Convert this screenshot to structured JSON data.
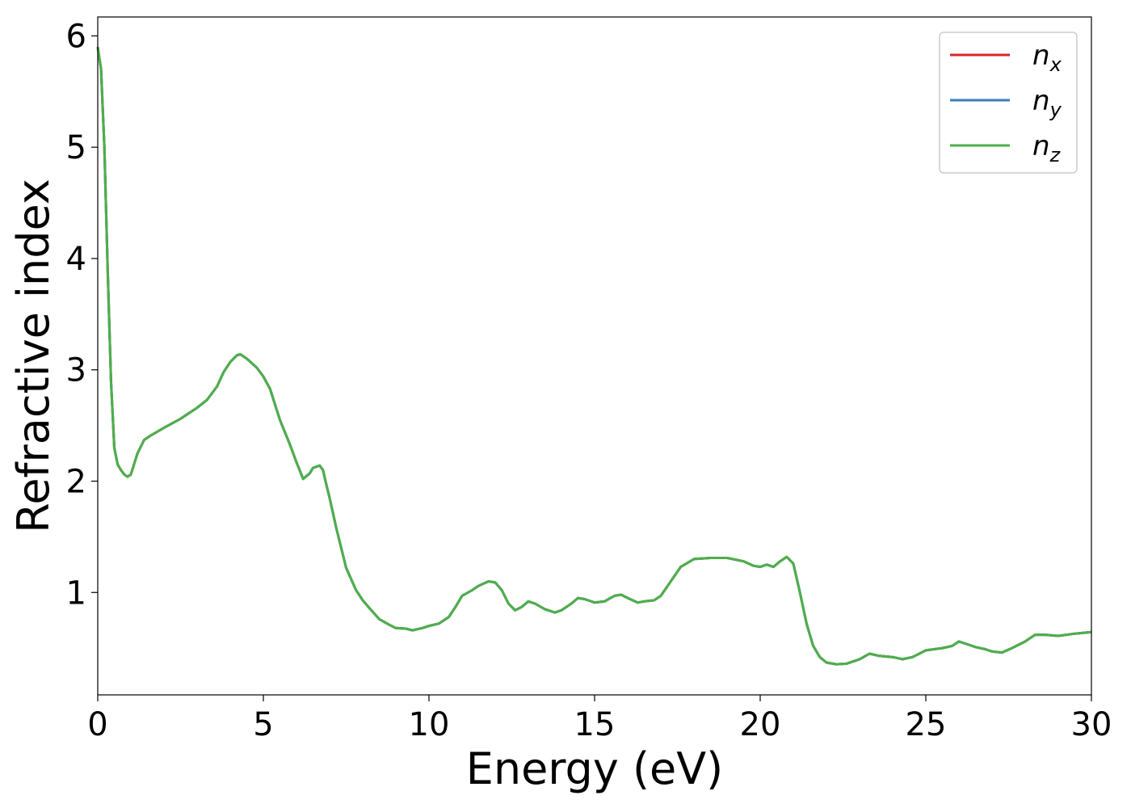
{
  "chart_data": {
    "type": "line",
    "xlabel": "Energy (eV)",
    "ylabel": "Refractive index",
    "xlim": [
      0,
      30
    ],
    "ylim": [
      0.08,
      6.17
    ],
    "xticks": [
      "0",
      "5",
      "10",
      "15",
      "20",
      "25",
      "30"
    ],
    "xtick_values": [
      0,
      5,
      10,
      15,
      20,
      25,
      30
    ],
    "yticks": [
      "1",
      "2",
      "3",
      "4",
      "5",
      "6"
    ],
    "ytick_values": [
      1,
      2,
      3,
      4,
      5,
      6
    ],
    "grid": false,
    "legend_position": "top-right",
    "series": [
      {
        "name": "n",
        "subscript": "x",
        "color": "#d62728",
        "x": [
          0,
          0.1,
          0.2,
          0.3,
          0.4,
          0.5,
          0.6,
          0.7,
          0.8,
          0.9,
          1.0,
          1.2,
          1.4,
          1.6,
          2.0,
          2.5,
          3.0,
          3.3,
          3.6,
          3.8,
          4.0,
          4.2,
          4.3,
          4.5,
          4.8,
          5.0,
          5.2,
          5.5,
          5.8,
          6.0,
          6.2,
          6.4,
          6.5,
          6.7,
          6.8,
          6.9,
          7.0,
          7.2,
          7.5,
          7.8,
          8.0,
          8.2,
          8.5,
          8.8,
          9.0,
          9.3,
          9.5,
          9.8,
          10.0,
          10.3,
          10.6,
          10.8,
          11.0,
          11.3,
          11.5,
          11.8,
          12.0,
          12.2,
          12.4,
          12.6,
          12.8,
          13.0,
          13.2,
          13.5,
          13.8,
          14.0,
          14.3,
          14.5,
          14.7,
          15.0,
          15.3,
          15.6,
          15.8,
          16.0,
          16.3,
          16.5,
          16.8,
          17.0,
          17.3,
          17.6,
          18.0,
          18.5,
          19.0,
          19.5,
          19.8,
          20.0,
          20.2,
          20.4,
          20.6,
          20.8,
          21.0,
          21.2,
          21.4,
          21.6,
          21.8,
          22.0,
          22.3,
          22.6,
          23.0,
          23.3,
          23.6,
          24.0,
          24.3,
          24.6,
          25.0,
          25.5,
          25.8,
          26.0,
          26.3,
          26.5,
          26.8,
          27.0,
          27.3,
          27.6,
          28.0,
          28.3,
          28.6,
          29.0,
          29.5,
          30.0
        ],
        "values": [
          5.9,
          5.7,
          5.0,
          3.9,
          2.9,
          2.3,
          2.15,
          2.1,
          2.06,
          2.04,
          2.06,
          2.25,
          2.37,
          2.41,
          2.48,
          2.56,
          2.66,
          2.73,
          2.85,
          2.98,
          3.07,
          3.13,
          3.14,
          3.1,
          3.02,
          2.94,
          2.83,
          2.55,
          2.33,
          2.17,
          2.02,
          2.07,
          2.12,
          2.14,
          2.1,
          1.97,
          1.85,
          1.58,
          1.22,
          1.02,
          0.93,
          0.86,
          0.76,
          0.71,
          0.68,
          0.675,
          0.66,
          0.68,
          0.7,
          0.72,
          0.78,
          0.87,
          0.97,
          1.02,
          1.06,
          1.1,
          1.09,
          1.02,
          0.9,
          0.84,
          0.87,
          0.92,
          0.9,
          0.85,
          0.82,
          0.84,
          0.9,
          0.95,
          0.94,
          0.91,
          0.92,
          0.97,
          0.98,
          0.95,
          0.91,
          0.92,
          0.93,
          0.97,
          1.1,
          1.23,
          1.3,
          1.31,
          1.31,
          1.28,
          1.24,
          1.23,
          1.25,
          1.23,
          1.28,
          1.32,
          1.26,
          1.0,
          0.72,
          0.52,
          0.42,
          0.37,
          0.355,
          0.36,
          0.4,
          0.45,
          0.43,
          0.42,
          0.4,
          0.42,
          0.48,
          0.5,
          0.52,
          0.56,
          0.53,
          0.51,
          0.49,
          0.47,
          0.46,
          0.5,
          0.56,
          0.62,
          0.62,
          0.61,
          0.63,
          0.645
        ]
      },
      {
        "name": "n",
        "subscript": "y",
        "color": "#377eb8",
        "x": [
          0,
          0.1,
          0.2,
          0.3,
          0.4,
          0.5,
          0.6,
          0.7,
          0.8,
          0.9,
          1.0,
          1.2,
          1.4,
          1.6,
          2.0,
          2.5,
          3.0,
          3.3,
          3.6,
          3.8,
          4.0,
          4.2,
          4.3,
          4.5,
          4.8,
          5.0,
          5.2,
          5.5,
          5.8,
          6.0,
          6.2,
          6.4,
          6.5,
          6.7,
          6.8,
          6.9,
          7.0,
          7.2,
          7.5,
          7.8,
          8.0,
          8.2,
          8.5,
          8.8,
          9.0,
          9.3,
          9.5,
          9.8,
          10.0,
          10.3,
          10.6,
          10.8,
          11.0,
          11.3,
          11.5,
          11.8,
          12.0,
          12.2,
          12.4,
          12.6,
          12.8,
          13.0,
          13.2,
          13.5,
          13.8,
          14.0,
          14.3,
          14.5,
          14.7,
          15.0,
          15.3,
          15.6,
          15.8,
          16.0,
          16.3,
          16.5,
          16.8,
          17.0,
          17.3,
          17.6,
          18.0,
          18.5,
          19.0,
          19.5,
          19.8,
          20.0,
          20.2,
          20.4,
          20.6,
          20.8,
          21.0,
          21.2,
          21.4,
          21.6,
          21.8,
          22.0,
          22.3,
          22.6,
          23.0,
          23.3,
          23.6,
          24.0,
          24.3,
          24.6,
          25.0,
          25.5,
          25.8,
          26.0,
          26.3,
          26.5,
          26.8,
          27.0,
          27.3,
          27.6,
          28.0,
          28.3,
          28.6,
          29.0,
          29.5,
          30.0
        ],
        "values": [
          5.9,
          5.7,
          5.0,
          3.9,
          2.9,
          2.3,
          2.15,
          2.1,
          2.06,
          2.04,
          2.06,
          2.25,
          2.37,
          2.41,
          2.48,
          2.56,
          2.66,
          2.73,
          2.85,
          2.98,
          3.07,
          3.13,
          3.14,
          3.1,
          3.02,
          2.94,
          2.83,
          2.55,
          2.33,
          2.17,
          2.02,
          2.07,
          2.12,
          2.14,
          2.1,
          1.97,
          1.85,
          1.58,
          1.22,
          1.02,
          0.93,
          0.86,
          0.76,
          0.71,
          0.68,
          0.675,
          0.66,
          0.68,
          0.7,
          0.72,
          0.78,
          0.87,
          0.97,
          1.02,
          1.06,
          1.1,
          1.09,
          1.02,
          0.9,
          0.84,
          0.87,
          0.92,
          0.9,
          0.85,
          0.82,
          0.84,
          0.9,
          0.95,
          0.94,
          0.91,
          0.92,
          0.97,
          0.98,
          0.95,
          0.91,
          0.92,
          0.93,
          0.97,
          1.1,
          1.23,
          1.3,
          1.31,
          1.31,
          1.28,
          1.24,
          1.23,
          1.25,
          1.23,
          1.28,
          1.32,
          1.26,
          1.0,
          0.72,
          0.52,
          0.42,
          0.37,
          0.355,
          0.36,
          0.4,
          0.45,
          0.43,
          0.42,
          0.4,
          0.42,
          0.48,
          0.5,
          0.52,
          0.56,
          0.53,
          0.51,
          0.49,
          0.47,
          0.46,
          0.5,
          0.56,
          0.62,
          0.62,
          0.61,
          0.63,
          0.645
        ]
      },
      {
        "name": "n",
        "subscript": "z",
        "color": "#4daf4a",
        "x": [
          0,
          0.1,
          0.2,
          0.3,
          0.4,
          0.5,
          0.6,
          0.7,
          0.8,
          0.9,
          1.0,
          1.2,
          1.4,
          1.6,
          2.0,
          2.5,
          3.0,
          3.3,
          3.6,
          3.8,
          4.0,
          4.2,
          4.3,
          4.5,
          4.8,
          5.0,
          5.2,
          5.5,
          5.8,
          6.0,
          6.2,
          6.4,
          6.5,
          6.7,
          6.8,
          6.9,
          7.0,
          7.2,
          7.5,
          7.8,
          8.0,
          8.2,
          8.5,
          8.8,
          9.0,
          9.3,
          9.5,
          9.8,
          10.0,
          10.3,
          10.6,
          10.8,
          11.0,
          11.3,
          11.5,
          11.8,
          12.0,
          12.2,
          12.4,
          12.6,
          12.8,
          13.0,
          13.2,
          13.5,
          13.8,
          14.0,
          14.3,
          14.5,
          14.7,
          15.0,
          15.3,
          15.6,
          15.8,
          16.0,
          16.3,
          16.5,
          16.8,
          17.0,
          17.3,
          17.6,
          18.0,
          18.5,
          19.0,
          19.5,
          19.8,
          20.0,
          20.2,
          20.4,
          20.6,
          20.8,
          21.0,
          21.2,
          21.4,
          21.6,
          21.8,
          22.0,
          22.3,
          22.6,
          23.0,
          23.3,
          23.6,
          24.0,
          24.3,
          24.6,
          25.0,
          25.5,
          25.8,
          26.0,
          26.3,
          26.5,
          26.8,
          27.0,
          27.3,
          27.6,
          28.0,
          28.3,
          28.6,
          29.0,
          29.5,
          30.0
        ],
        "values": [
          5.9,
          5.7,
          5.0,
          3.9,
          2.9,
          2.3,
          2.15,
          2.1,
          2.06,
          2.04,
          2.06,
          2.25,
          2.37,
          2.41,
          2.48,
          2.56,
          2.66,
          2.73,
          2.85,
          2.98,
          3.07,
          3.13,
          3.14,
          3.1,
          3.02,
          2.94,
          2.83,
          2.55,
          2.33,
          2.17,
          2.02,
          2.07,
          2.12,
          2.14,
          2.1,
          1.97,
          1.85,
          1.58,
          1.22,
          1.02,
          0.93,
          0.86,
          0.76,
          0.71,
          0.68,
          0.675,
          0.66,
          0.68,
          0.7,
          0.72,
          0.78,
          0.87,
          0.97,
          1.02,
          1.06,
          1.1,
          1.09,
          1.02,
          0.9,
          0.84,
          0.87,
          0.92,
          0.9,
          0.85,
          0.82,
          0.84,
          0.9,
          0.95,
          0.94,
          0.91,
          0.92,
          0.97,
          0.98,
          0.95,
          0.91,
          0.92,
          0.93,
          0.97,
          1.1,
          1.23,
          1.3,
          1.31,
          1.31,
          1.28,
          1.24,
          1.23,
          1.25,
          1.23,
          1.28,
          1.32,
          1.26,
          1.0,
          0.72,
          0.52,
          0.42,
          0.37,
          0.355,
          0.36,
          0.4,
          0.45,
          0.43,
          0.42,
          0.4,
          0.42,
          0.48,
          0.5,
          0.52,
          0.56,
          0.53,
          0.51,
          0.49,
          0.47,
          0.46,
          0.5,
          0.56,
          0.62,
          0.62,
          0.61,
          0.63,
          0.645
        ]
      }
    ]
  }
}
